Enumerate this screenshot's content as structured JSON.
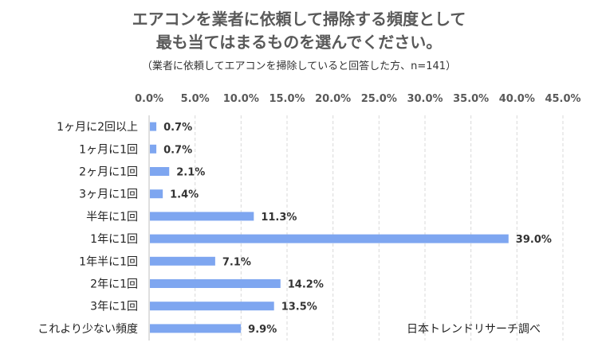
{
  "chart_data": {
    "type": "bar",
    "orientation": "horizontal",
    "title": "エアコンを業者に依頼して掃除する頻度として\n最も当てはまるものを選んでください。",
    "title_lines": [
      "エアコンを業者に依頼して掃除する頻度として",
      "最も当てはまるものを選んでください。"
    ],
    "subtitle": "（業者に依頼してエアコンを掃除していると回答した方、n=141）",
    "categories": [
      "1ヶ月に2回以上",
      "1ヶ月に1回",
      "2ヶ月に1回",
      "3ヶ月に1回",
      "半年に1回",
      "1年に1回",
      "1年半に1回",
      "2年に1回",
      "3年に1回",
      "これより少ない頻度"
    ],
    "values": [
      0.7,
      0.7,
      2.1,
      1.4,
      11.3,
      39.0,
      7.1,
      14.2,
      13.5,
      9.9
    ],
    "value_labels": [
      "0.7%",
      "0.7%",
      "2.1%",
      "1.4%",
      "11.3%",
      "39.0%",
      "7.1%",
      "14.2%",
      "13.5%",
      "9.9%"
    ],
    "xlim": [
      0,
      45
    ],
    "x_ticks": [
      0,
      5,
      10,
      15,
      20,
      25,
      30,
      35,
      40,
      45
    ],
    "x_tick_labels": [
      "0.0%",
      "5.0%",
      "10.0%",
      "15.0%",
      "20.0%",
      "25.0%",
      "30.0%",
      "35.0%",
      "40.0%",
      "45.0%"
    ],
    "x_axis_position": "top",
    "grid": "vertical dashed",
    "legend": "none",
    "bar_color": "#7ea6f0",
    "gridline_color": "#d9d9d9",
    "source": "日本トレンドリサーチ調べ"
  }
}
